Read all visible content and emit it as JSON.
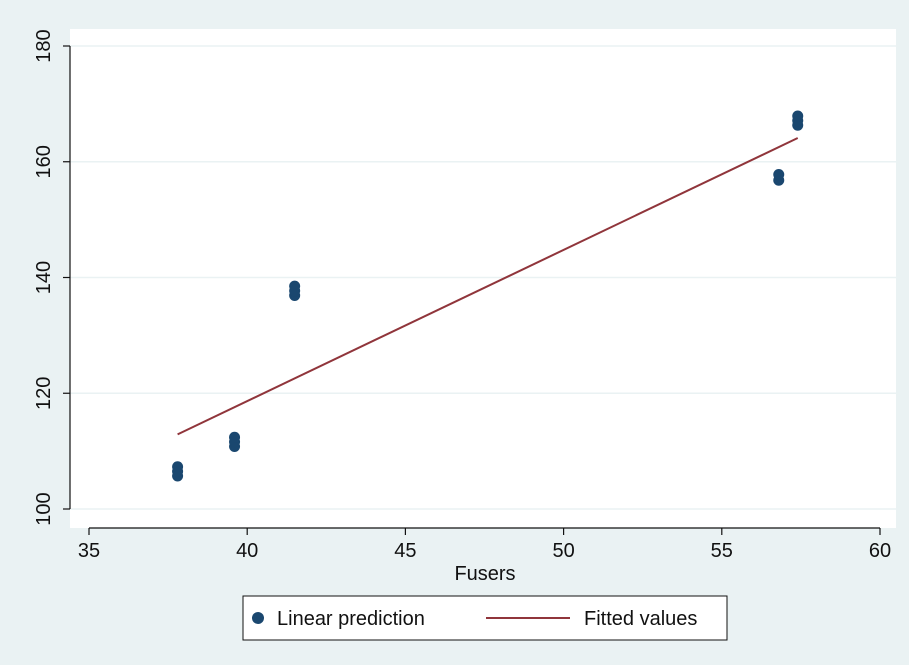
{
  "chart_data": {
    "type": "scatter",
    "title": "",
    "xlabel": "Fusers",
    "ylabel": "",
    "xlim": [
      35,
      60
    ],
    "ylim": [
      100,
      180
    ],
    "xticks": [
      35,
      40,
      45,
      50,
      55,
      60
    ],
    "yticks": [
      100,
      120,
      140,
      160,
      180
    ],
    "grid": "horizontal",
    "legend_position": "bottom",
    "colors": {
      "outer_background": "#eaf2f3",
      "plot_background": "#ffffff",
      "grid": "#eaf2f3",
      "points": "#1a476f",
      "line": "#90353b"
    },
    "series": [
      {
        "name": "Linear prediction",
        "kind": "scatter",
        "x": [
          37.8,
          37.8,
          37.8,
          39.6,
          39.6,
          39.6,
          41.5,
          41.5,
          41.5,
          56.8,
          56.8,
          57.4,
          57.4,
          57.4
        ],
        "y": [
          105.7,
          106.5,
          107.3,
          110.8,
          111.6,
          112.4,
          136.9,
          137.7,
          138.5,
          156.8,
          157.8,
          166.3,
          167.1,
          167.9
        ]
      },
      {
        "name": "Fitted values",
        "kind": "line",
        "x": [
          37.8,
          57.4
        ],
        "y": [
          112.9,
          164.1
        ]
      }
    ]
  }
}
